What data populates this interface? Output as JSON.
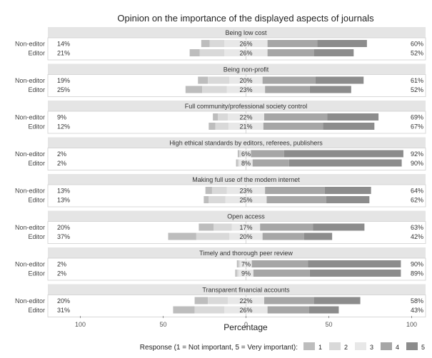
{
  "chart_data": {
    "type": "bar",
    "subtype": "diverging-stacked-likert",
    "title": "Opinion on the importance of the displayed aspects of journals",
    "xlabel": "Percentage",
    "xticks": [
      "100",
      "50",
      "0",
      "50",
      "100"
    ],
    "xlim": [
      -100,
      100
    ],
    "legend": {
      "title": "Response (1 = Not important, 5 = Very important):",
      "levels": [
        "1",
        "2",
        "3",
        "4",
        "5"
      ],
      "colors": [
        "#bdbdbd",
        "#d9d9d9",
        "#e8e8e8",
        "#a6a6a6",
        "#8c8c8c"
      ],
      "placement": "bottom"
    },
    "neutral_level": 3,
    "panels": [
      {
        "title": "Being low cost",
        "rows": [
          {
            "group": "Non-editor",
            "low_pct": "14%",
            "neutral_pct": "26%",
            "high_pct": "60%",
            "values": [
              5,
              9,
              26,
              30,
              30
            ]
          },
          {
            "group": "Editor",
            "low_pct": "21%",
            "neutral_pct": "26%",
            "high_pct": "52%",
            "values": [
              6,
              15,
              26,
              28,
              24
            ]
          }
        ]
      },
      {
        "title": "Being non-profit",
        "rows": [
          {
            "group": "Non-editor",
            "low_pct": "19%",
            "neutral_pct": "20%",
            "high_pct": "61%",
            "values": [
              6,
              13,
              20,
              32,
              29
            ]
          },
          {
            "group": "Editor",
            "low_pct": "25%",
            "neutral_pct": "23%",
            "high_pct": "52%",
            "values": [
              10,
              15,
              23,
              27,
              25
            ]
          }
        ]
      },
      {
        "title": "Full community/professional society control",
        "rows": [
          {
            "group": "Non-editor",
            "low_pct": "9%",
            "neutral_pct": "22%",
            "high_pct": "69%",
            "values": [
              3,
              6,
              22,
              38,
              31
            ]
          },
          {
            "group": "Editor",
            "low_pct": "12%",
            "neutral_pct": "21%",
            "high_pct": "67%",
            "values": [
              4,
              8,
              21,
              36,
              31
            ]
          }
        ]
      },
      {
        "title": "High ethical standards by editors, referees, publishers",
        "rows": [
          {
            "group": "Non-editor",
            "low_pct": "2%",
            "neutral_pct": "6%",
            "high_pct": "92%",
            "values": [
              1,
              1,
              6,
              20,
              72
            ]
          },
          {
            "group": "Editor",
            "low_pct": "2%",
            "neutral_pct": "8%",
            "high_pct": "90%",
            "values": [
              1,
              1,
              8,
              22,
              68
            ]
          }
        ]
      },
      {
        "title": "Making full use of the modern internet",
        "rows": [
          {
            "group": "Non-editor",
            "low_pct": "13%",
            "neutral_pct": "23%",
            "high_pct": "64%",
            "values": [
              4,
              9,
              23,
              36,
              28
            ]
          },
          {
            "group": "Editor",
            "low_pct": "13%",
            "neutral_pct": "25%",
            "high_pct": "62%",
            "values": [
              3,
              10,
              25,
              36,
              26
            ]
          }
        ]
      },
      {
        "title": "Open access",
        "rows": [
          {
            "group": "Non-editor",
            "low_pct": "20%",
            "neutral_pct": "17%",
            "high_pct": "63%",
            "values": [
              9,
              11,
              17,
              32,
              31
            ]
          },
          {
            "group": "Editor",
            "low_pct": "37%",
            "neutral_pct": "20%",
            "high_pct": "42%",
            "values": [
              17,
              20,
              20,
              25,
              17
            ]
          }
        ]
      },
      {
        "title": "Timely and thorough peer review",
        "rows": [
          {
            "group": "Non-editor",
            "low_pct": "2%",
            "neutral_pct": "7%",
            "high_pct": "90%",
            "values": [
              1,
              1,
              7,
              34,
              56
            ]
          },
          {
            "group": "Editor",
            "low_pct": "2%",
            "neutral_pct": "9%",
            "high_pct": "89%",
            "values": [
              1,
              1,
              9,
              34,
              55
            ]
          }
        ]
      },
      {
        "title": "Transparent financial accounts",
        "rows": [
          {
            "group": "Non-editor",
            "low_pct": "20%",
            "neutral_pct": "22%",
            "high_pct": "58%",
            "values": [
              8,
              12,
              22,
              30,
              28
            ]
          },
          {
            "group": "Editor",
            "low_pct": "31%",
            "neutral_pct": "26%",
            "high_pct": "43%",
            "values": [
              13,
              18,
              26,
              25,
              18
            ]
          }
        ]
      }
    ]
  }
}
